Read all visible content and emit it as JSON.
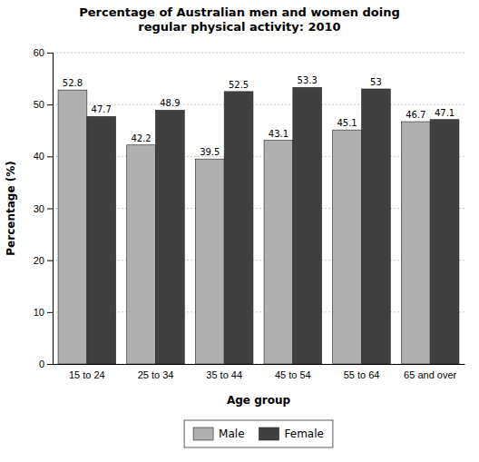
{
  "chart_data": {
    "type": "bar",
    "title": "Percentage of Australian men and women doing\nregular physical activity: 2010",
    "x_label": "Age group",
    "y_label": "Percentage (%)",
    "categories": [
      "15 to 24",
      "25 to 34",
      "35 to 44",
      "45 to 54",
      "55 to 64",
      "65 and over"
    ],
    "series": [
      {
        "name": "Male",
        "color": "#b0b0b0",
        "values": [
          52.8,
          42.2,
          39.5,
          43.1,
          45.1,
          46.7
        ]
      },
      {
        "name": "Female",
        "color": "#404040",
        "values": [
          47.7,
          48.9,
          52.5,
          53.3,
          53.0,
          47.1
        ]
      }
    ],
    "ylim": [
      0,
      60
    ],
    "yticks": [
      0,
      10,
      20,
      30,
      40,
      50,
      60
    ],
    "grid": true,
    "data_labels": true,
    "legend": "bottom"
  }
}
